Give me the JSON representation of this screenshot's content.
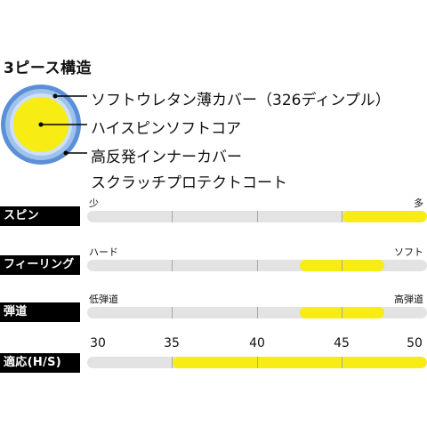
{
  "title": "3ピース構造",
  "layers": [
    {
      "label": "ソフトウレタン薄カバー（326ディンプル）"
    },
    {
      "label": "ハイスピンソフトコア"
    },
    {
      "label": "高反発インナーカバー"
    },
    {
      "label": "スクラッチプロテクトコート"
    }
  ],
  "ball_colors": {
    "coat": "#5b8fd6",
    "cover": "#9fc3ec",
    "inner_cover": "#cfe0f3",
    "core": "#f7ec14"
  },
  "rows": [
    {
      "label": "スピン",
      "left": "少",
      "right": "多",
      "fill_start": 0.75,
      "fill_end": 1.0
    },
    {
      "label": "フィーリング",
      "left": "ハード",
      "right": "ソフト",
      "fill_start": 0.625,
      "fill_end": 0.875
    },
    {
      "label": "弾道",
      "left": "低弾道",
      "right": "高弾道",
      "fill_start": 0.625,
      "fill_end": 0.875
    },
    {
      "label": "適応(H/S)",
      "scale": [
        "30",
        "35",
        "40",
        "45",
        "50"
      ],
      "fill_start": 35,
      "fill_end": 50,
      "range": [
        30,
        50
      ]
    }
  ],
  "fill_color": "#f7ec14"
}
